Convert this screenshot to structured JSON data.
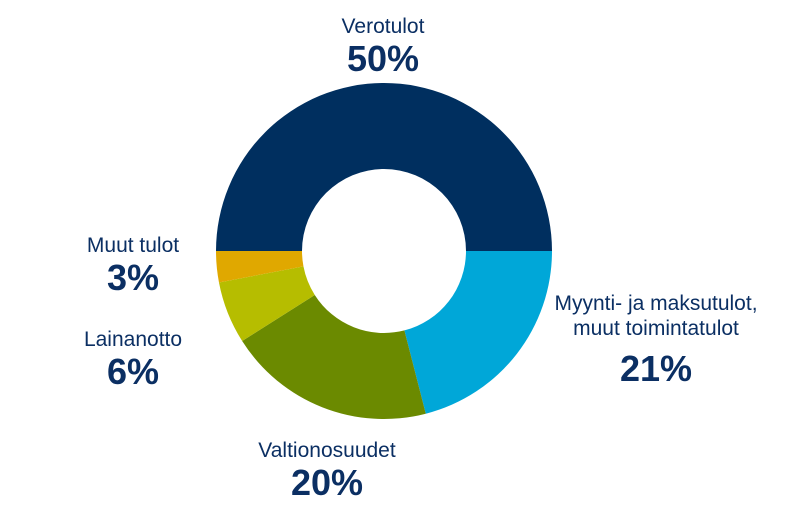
{
  "chart_data": {
    "type": "pie",
    "variant": "donut",
    "legend": "none",
    "slices": [
      {
        "label": "Verotulot",
        "value": 50,
        "value_label": "50%",
        "color": "#002f5f"
      },
      {
        "label": "Myynti- ja maksutulot, muut toimintatulot",
        "label_lines": [
          "Myynti- ja maksutulot,",
          "muut toimintatulot"
        ],
        "value": 21,
        "value_label": "21%",
        "color": "#00a7d8"
      },
      {
        "label": "Valtionosuudet",
        "value": 20,
        "value_label": "20%",
        "color": "#6b8a00"
      },
      {
        "label": "Lainanotto",
        "value": 6,
        "value_label": "6%",
        "color": "#b6bd00"
      },
      {
        "label": "Muut tulot",
        "value": 3,
        "value_label": "3%",
        "color": "#e0a800"
      }
    ]
  }
}
